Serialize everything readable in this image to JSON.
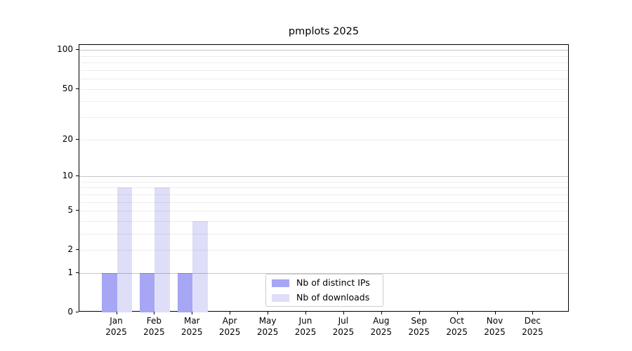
{
  "chart_data": {
    "type": "bar",
    "title": "pmplots 2025",
    "x_categories": [
      "Jan",
      "Feb",
      "Mar",
      "Apr",
      "May",
      "Jun",
      "Jul",
      "Aug",
      "Sep",
      "Oct",
      "Nov",
      "Dec"
    ],
    "x_sublabel": "2025",
    "series": [
      {
        "name": "Nb of distinct IPs",
        "color": "#a6a6f4",
        "values": [
          1,
          1,
          1,
          0,
          0,
          0,
          0,
          0,
          0,
          0,
          0,
          0
        ]
      },
      {
        "name": "Nb of downloads",
        "color": "#dedef8",
        "values": [
          8,
          8,
          4,
          0,
          0,
          0,
          0,
          0,
          0,
          0,
          0,
          0
        ]
      }
    ],
    "y_axis": {
      "scale": "log1p",
      "ticks": [
        0,
        1,
        2,
        5,
        10,
        20,
        50,
        100
      ],
      "max": 110,
      "major_gridlines": [
        1,
        10,
        100
      ],
      "minor_gridlines": [
        2,
        3,
        4,
        5,
        6,
        7,
        8,
        9,
        20,
        30,
        40,
        50,
        60,
        70,
        80,
        90
      ]
    },
    "legend_position": "bottom-center-inside",
    "grid": "horizontal-only"
  },
  "colors": {
    "bar_distinct_ips": "#a6a6f4",
    "bar_downloads": "#dedef8",
    "grid_major": "rgba(0,0,0,0.22)",
    "grid_minor": "rgba(0,0,0,0.07)",
    "axis": "#000000",
    "legend_border": "#cccccc",
    "background": "#ffffff"
  }
}
